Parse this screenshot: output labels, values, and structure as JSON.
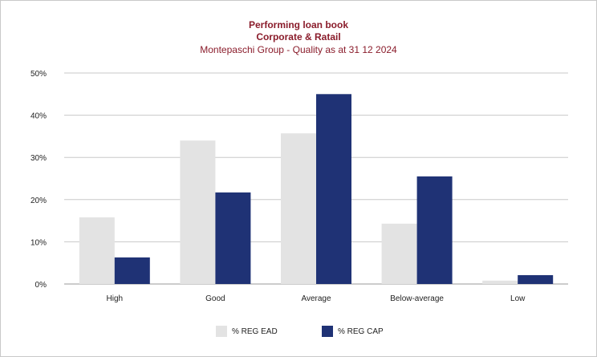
{
  "chart_data": {
    "type": "bar",
    "title": "Performing loan book",
    "subtitle": "Corporate & Ratail",
    "subtitle2": "Montepaschi Group - Quality as at 31 12 2024",
    "categories": [
      "High",
      "Good",
      "Average",
      "Below-average",
      "Low"
    ],
    "series": [
      {
        "name": "% REG EAD",
        "color": "#e3e3e3",
        "values": [
          15.8,
          34.0,
          35.7,
          14.3,
          0.8
        ]
      },
      {
        "name": "% REG CAP",
        "color": "#1f3275",
        "values": [
          6.3,
          21.7,
          45.0,
          25.5,
          2.1
        ]
      }
    ],
    "ylim": [
      0,
      50
    ],
    "yticks": [
      "0%",
      "10%",
      "20%",
      "30%",
      "40%",
      "50%"
    ],
    "ytick_values": [
      0,
      10,
      20,
      30,
      40,
      50
    ],
    "grid": true,
    "legend_position": "bottom",
    "title_color": "#8a1c2b"
  }
}
